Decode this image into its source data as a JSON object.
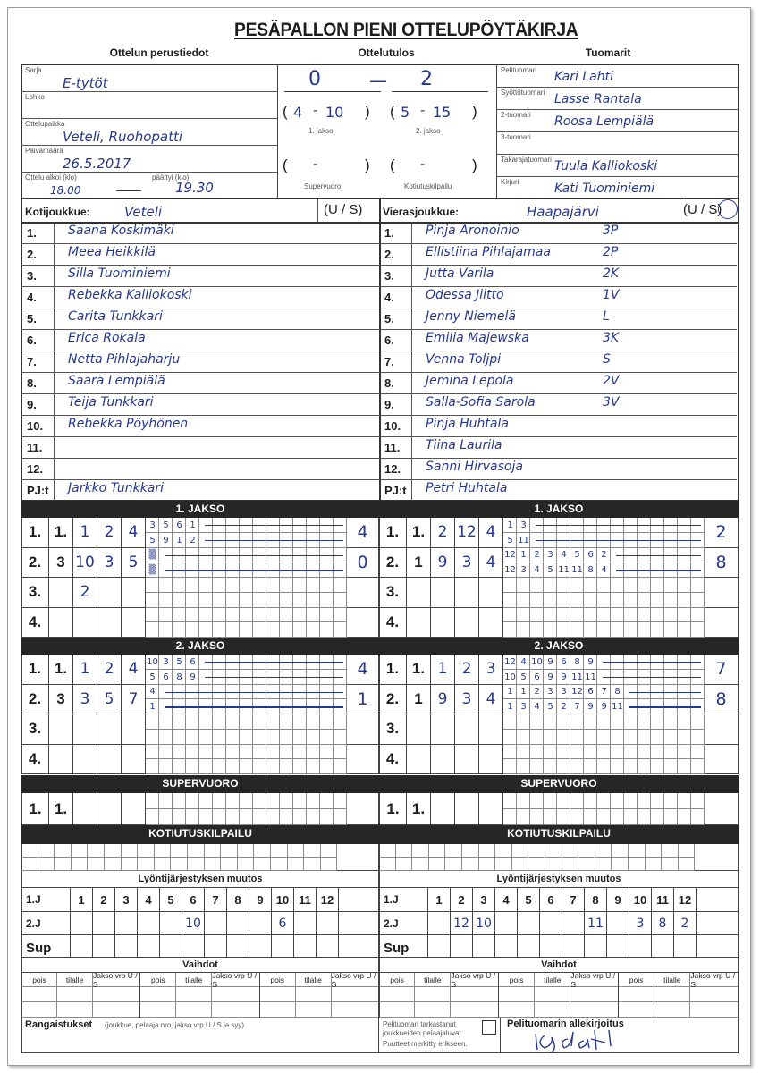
{
  "title": "PESÄPALLON PIENI OTTELUPÖYTÄKIRJA",
  "sections": {
    "basic": "Ottelun perustiedot",
    "result": "Ottelutulos",
    "referees": "Tuomarit"
  },
  "basic_info": {
    "fields": [
      {
        "label": "Sarja",
        "value": "E-tytöt"
      },
      {
        "label": "Lohko",
        "value": ""
      },
      {
        "label": "Ottelupaikka",
        "value": "Veteli, Ruohopatti"
      },
      {
        "label": "Päivämäärä",
        "value": "26.5.2017"
      }
    ],
    "start_label": "Ottelu alkoi (klo)",
    "start": "18.00",
    "end_label": "päättyi (klo)",
    "end": "19.30"
  },
  "result": {
    "home": "0",
    "away": "2",
    "period1": {
      "home": "4",
      "away": "10",
      "label": "1. jakso"
    },
    "period2": {
      "home": "5",
      "away": "15",
      "label": "2. jakso"
    },
    "supervuoro_label": "Supervuoro",
    "kotiutus_label": "Kotiutuskilpailu"
  },
  "referees": [
    {
      "label": "Pelituomari",
      "value": "Kari Lahti"
    },
    {
      "label": "Syöttötuomari",
      "value": "Lasse Rantala"
    },
    {
      "label": "2-tuomari",
      "value": "Roosa Lempiälä"
    },
    {
      "label": "3-tuomari",
      "value": ""
    },
    {
      "label": "Takarajatuomari",
      "value": "Tuula Kalliokoski"
    },
    {
      "label": "Kirjuri",
      "value": "Kati Tuominiemi"
    }
  ],
  "teams": {
    "home": {
      "label": "Kotijoukkue:",
      "name": "Veteli",
      "us": "(U / S)",
      "players": [
        {
          "no": "1.",
          "name": "Saana Koskimäki"
        },
        {
          "no": "2.",
          "name": "Meea Heikkilä"
        },
        {
          "no": "3.",
          "name": "Silla Tuominiemi"
        },
        {
          "no": "4.",
          "name": "Rebekka Kalliokoski"
        },
        {
          "no": "5.",
          "name": "Carita Tunkkari"
        },
        {
          "no": "6.",
          "name": "Erica Rokala"
        },
        {
          "no": "7.",
          "name": "Netta Pihlajaharju"
        },
        {
          "no": "8.",
          "name": "Saara Lempiälä"
        },
        {
          "no": "9.",
          "name": "Teija Tunkkari"
        },
        {
          "no": "10.",
          "name": "Rebekka Pöyhönen"
        },
        {
          "no": "11.",
          "name": ""
        },
        {
          "no": "12.",
          "name": ""
        },
        {
          "no": "PJ:t",
          "name": "Jarkko Tunkkari"
        }
      ]
    },
    "away": {
      "label": "Vierasjoukkue:",
      "name": "Haapajärvi",
      "us": "(U / S)",
      "us_selected": "S",
      "players": [
        {
          "no": "1.",
          "name": "Pinja Aronoinio",
          "pos": "3P"
        },
        {
          "no": "2.",
          "name": "Ellistiina Pihlajamaa",
          "pos": "2P"
        },
        {
          "no": "3.",
          "name": "Jutta Varila",
          "pos": "2K"
        },
        {
          "no": "4.",
          "name": "Odessa Jiitto",
          "pos": "1V"
        },
        {
          "no": "5.",
          "name": "Jenny Niemelä",
          "pos": "L"
        },
        {
          "no": "6.",
          "name": "Emilia Majewska",
          "pos": "3K"
        },
        {
          "no": "7.",
          "name": "Venna Toljpi",
          "pos": "S"
        },
        {
          "no": "8.",
          "name": "Jemina Lepola",
          "pos": "2V"
        },
        {
          "no": "9.",
          "name": "Salla-Sofia Sarola",
          "pos": "3V"
        },
        {
          "no": "10.",
          "name": "Pinja Huhtala",
          "pos": ""
        },
        {
          "no": "11.",
          "name": "Tiina Laurila",
          "pos": ""
        },
        {
          "no": "12.",
          "name": "Sanni Hirvasoja",
          "pos": ""
        },
        {
          "no": "PJ:t",
          "name": "Petri Huhtala",
          "pos": ""
        }
      ]
    }
  },
  "innings": {
    "home": [
      {
        "title": "1. JAKSO",
        "rows": [
          {
            "num": "1.",
            "cells": [
              "1.",
              "1",
              "2",
              "4"
            ],
            "top": [
              "3",
              "5",
              "6",
              "1"
            ],
            "bottom": [
              "5",
              "9",
              "1",
              "2"
            ],
            "score": "4"
          },
          {
            "num": "2.",
            "cells": [
              "3",
              "10",
              "3",
              "5"
            ],
            "top": [
              "▒"
            ],
            "bottom": [
              "▒"
            ],
            "score": "0"
          },
          {
            "num": "3.",
            "cells": [
              "",
              "2",
              "",
              ""
            ],
            "top": [],
            "bottom": [],
            "score": ""
          },
          {
            "num": "4.",
            "cells": [
              "",
              "",
              "",
              ""
            ],
            "top": [],
            "bottom": [],
            "score": ""
          }
        ]
      },
      {
        "title": "2. JAKSO",
        "rows": [
          {
            "num": "1.",
            "cells": [
              "1.",
              "1",
              "2",
              "4"
            ],
            "top": [
              "10",
              "3",
              "5",
              "6"
            ],
            "bottom": [
              "5",
              "6",
              "8",
              "9"
            ],
            "score": "4"
          },
          {
            "num": "2.",
            "cells": [
              "3",
              "3",
              "5",
              "7"
            ],
            "top": [
              "4"
            ],
            "bottom": [
              "1"
            ],
            "score": "1"
          },
          {
            "num": "3.",
            "cells": [
              "",
              "",
              "",
              ""
            ],
            "top": [],
            "bottom": [],
            "score": ""
          },
          {
            "num": "4.",
            "cells": [
              "",
              "",
              "",
              ""
            ],
            "top": [],
            "bottom": [],
            "score": ""
          }
        ]
      }
    ],
    "away": [
      {
        "title": "1. JAKSO",
        "rows": [
          {
            "num": "1.",
            "cells": [
              "1.",
              "2",
              "12",
              "4"
            ],
            "top": [
              "1",
              "3"
            ],
            "bottom": [
              "5",
              "11"
            ],
            "score": "2"
          },
          {
            "num": "2.",
            "cells": [
              "1",
              "9",
              "3",
              "4"
            ],
            "top": [
              "12",
              "1",
              "2",
              "3",
              "4",
              "5",
              "6",
              "2"
            ],
            "bottom": [
              "12",
              "3",
              "4",
              "5",
              "11",
              "11",
              "8",
              "4"
            ],
            "score": "8"
          },
          {
            "num": "3.",
            "cells": [
              "",
              "",
              "",
              ""
            ],
            "top": [],
            "bottom": [],
            "score": ""
          },
          {
            "num": "4.",
            "cells": [
              "",
              "",
              "",
              ""
            ],
            "top": [],
            "bottom": [],
            "score": ""
          }
        ]
      },
      {
        "title": "2. JAKSO",
        "rows": [
          {
            "num": "1.",
            "cells": [
              "1.",
              "1",
              "2",
              "3"
            ],
            "top": [
              "12",
              "4",
              "10",
              "9",
              "6",
              "8",
              "9"
            ],
            "bottom": [
              "10",
              "5",
              "6",
              "9",
              "9",
              "11",
              "11"
            ],
            "score": "7"
          },
          {
            "num": "2.",
            "cells": [
              "1",
              "9",
              "3",
              "4"
            ],
            "top": [
              "1",
              "1",
              "2",
              "3",
              "3",
              "12",
              "6",
              "7",
              "8"
            ],
            "bottom": [
              "1",
              "3",
              "4",
              "5",
              "2",
              "7",
              "9",
              "9",
              "11"
            ],
            "score": "8"
          },
          {
            "num": "3.",
            "cells": [
              "",
              "",
              "",
              ""
            ],
            "top": [],
            "bottom": [],
            "score": ""
          },
          {
            "num": "4.",
            "cells": [
              "",
              "",
              "",
              ""
            ],
            "top": [],
            "bottom": [],
            "score": ""
          }
        ]
      }
    ]
  },
  "supervuoro": {
    "title": "SUPERVUORO",
    "num": "1.",
    "first": "1."
  },
  "kotiutuskilpailu": {
    "title": "KOTIUTUSKILPAILU"
  },
  "batting_order_change": {
    "title": "Lyöntijärjestyksen muutos",
    "columns": [
      "1",
      "2",
      "3",
      "4",
      "5",
      "6",
      "7",
      "8",
      "9",
      "10",
      "11",
      "12"
    ],
    "row_labels": [
      "1.J",
      "2.J",
      "Sup"
    ],
    "home_2j": [
      "",
      "",
      "",
      "",
      "",
      "10",
      "",
      "",
      "",
      "6",
      "",
      ""
    ],
    "away_2j": [
      "",
      "12",
      "10",
      "",
      "",
      "",
      "",
      "11",
      "",
      "3",
      "8",
      "2"
    ]
  },
  "substitutions": {
    "title": "Vaihdot",
    "headers": [
      "pois",
      "tilalle",
      "Jakso vrp U / S"
    ]
  },
  "footer": {
    "penalties_label": "Rangaistukset",
    "penalties_hint": "(joukkue, pelaaja nro, jakso vrp U / S ja syy)",
    "check_text_1": "Pelituomari tarkastanut joukkueiden pelaajaluvat.",
    "check_text_2": "Puutteet merkitty erikseen.",
    "signature_label": "Pelituomarin allekirjoitus"
  },
  "colors": {
    "ink": "#26388e",
    "bar": "#262626"
  }
}
